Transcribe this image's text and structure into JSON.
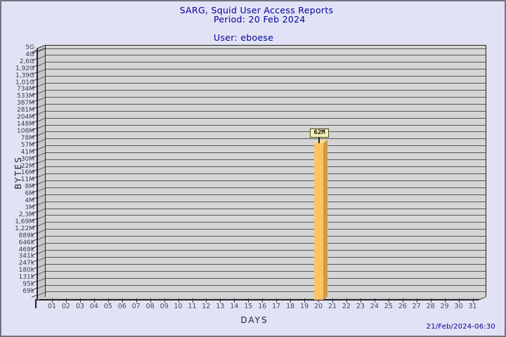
{
  "footer": {
    "timestamp": "21/Feb/2024-06:30"
  },
  "chart_data": {
    "type": "bar",
    "title": "SARG, Squid User Access Reports",
    "period": "Period: 20 Feb 2024",
    "user": "User: eboese",
    "xlabel": "DAYS",
    "ylabel": "BYTES",
    "y_scale": "log",
    "y_ticks": [
      "5G",
      "4G",
      "2,6G",
      "1,92G",
      "1,39G",
      "1,01G",
      "734M",
      "533M",
      "387M",
      "281M",
      "204M",
      "148M",
      "108M",
      "78M",
      "57M",
      "41M",
      "30M",
      "22M",
      "16M",
      "11M",
      "8M",
      "6M",
      "4M",
      "3M",
      "2,3M",
      "1,69M",
      "1,22M",
      "889k",
      "646k",
      "469k",
      "341k",
      "247k",
      "180k",
      "131k",
      "95k",
      "69k"
    ],
    "y_max_bytes": 5000000000,
    "y_min_bytes": 69000,
    "x_ticks": [
      "01",
      "02",
      "03",
      "04",
      "05",
      "06",
      "07",
      "08",
      "09",
      "10",
      "11",
      "12",
      "13",
      "14",
      "15",
      "16",
      "17",
      "18",
      "19",
      "20",
      "21",
      "22",
      "23",
      "24",
      "25",
      "26",
      "27",
      "28",
      "29",
      "30",
      "31"
    ],
    "bars": [
      {
        "x": "20",
        "label": "62M",
        "value_bytes": 62000000
      }
    ],
    "grid": "horizontal",
    "legend": "none"
  },
  "colors": {
    "background": "#e2e2f6",
    "panel": "#d5d5d5",
    "gridline": "#57575b",
    "title_text": "#000099",
    "bar_front": "#fcc366",
    "bar_side": "#cd9a45",
    "bar_top": "#f1dc99",
    "callout_bg": "#f6f2b3"
  }
}
